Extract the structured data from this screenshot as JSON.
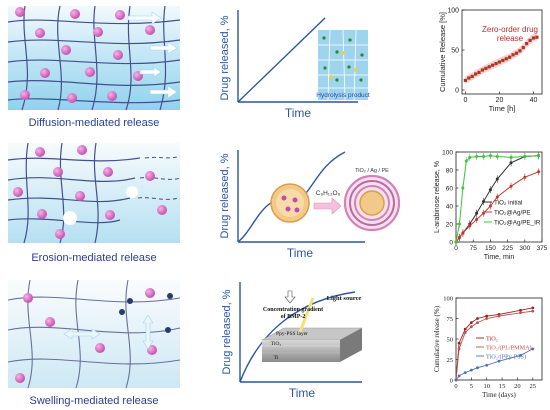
{
  "rows": [
    {
      "label": "Diffusion-mediated release",
      "curve": {
        "xlabel": "Time",
        "ylabel": "Drug released, %",
        "inset_label": "Hydrolysis product"
      },
      "chart": {
        "ylabel": "Cumulative Release [%]",
        "xlabel": "Time [h]",
        "annotation": "Zero-order drug release"
      }
    },
    {
      "label": "Erosion-mediated release",
      "curve": {
        "xlabel": "Time",
        "ylabel": "Drug released, %",
        "arrow_label": "C₆H₁₂O₆",
        "inset_label": "TiO₂ / Ag / PE"
      },
      "chart": {
        "ylabel": "L-arabinose release, %",
        "xlabel": "Time, min"
      }
    },
    {
      "label": "Swelling-mediated release",
      "curve": {
        "xlabel": "Time",
        "ylabel": "Drug released, %",
        "inset_labels": [
          "Concentration gradient",
          "of BMP-2",
          "Light source",
          "Ppy-PSS layer",
          "TiO₂",
          "Ti"
        ]
      },
      "chart": {
        "ylabel": "Cumulative release (%)",
        "xlabel": "Time (days)"
      }
    }
  ],
  "chart_data": [
    {
      "type": "scatter",
      "title": "",
      "xlabel": "Time [h]",
      "ylabel": "Cumulative Release [%]",
      "xlim": [
        -2,
        45
      ],
      "ylim": [
        -5,
        100
      ],
      "xticks": [
        0,
        20,
        40
      ],
      "yticks": [
        0,
        50,
        100
      ],
      "series": [
        {
          "x": [
            0,
            2,
            4,
            6,
            8,
            10,
            12,
            14,
            16,
            18,
            20,
            22,
            24,
            26,
            28,
            30,
            32,
            34,
            36,
            38,
            40,
            42
          ],
          "y": [
            12,
            15,
            17,
            20,
            22,
            25,
            27,
            29,
            31,
            33,
            35,
            37,
            39,
            41,
            44,
            46,
            49,
            53,
            58,
            62,
            65,
            66
          ]
        }
      ],
      "annotations": [
        "Zero-order drug release"
      ]
    },
    {
      "type": "line",
      "title": "",
      "xlabel": "Time, min",
      "ylabel": "L-arabinose release, %",
      "xlim": [
        0,
        375
      ],
      "ylim": [
        0,
        100
      ],
      "xticks": [
        0,
        75,
        150,
        225,
        300,
        375
      ],
      "yticks": [
        0,
        20,
        40,
        60,
        80,
        100
      ],
      "legend": "center-right",
      "series": [
        {
          "name": "TiO₂ initial",
          "x": [
            0,
            15,
            30,
            60,
            90,
            120,
            150,
            180,
            240,
            300,
            360
          ],
          "y": [
            0,
            5,
            10,
            20,
            32,
            45,
            58,
            70,
            88,
            95,
            96
          ]
        },
        {
          "name": "TiO₂@Ag/PE",
          "x": [
            0,
            15,
            30,
            60,
            90,
            120,
            150,
            180,
            240,
            300,
            360
          ],
          "y": [
            0,
            5,
            10,
            18,
            25,
            32,
            40,
            50,
            62,
            72,
            78
          ]
        },
        {
          "name": "TiO₂@Ag/PE_IR",
          "x": [
            0,
            15,
            30,
            45,
            60,
            90,
            120,
            150,
            180,
            240,
            300,
            360
          ],
          "y": [
            0,
            20,
            60,
            90,
            94,
            95,
            95,
            96,
            95,
            94,
            95,
            96
          ]
        }
      ]
    },
    {
      "type": "line",
      "title": "",
      "xlabel": "Time (days)",
      "ylabel": "Cumulative release (%)",
      "xlim": [
        0,
        28
      ],
      "ylim": [
        0,
        100
      ],
      "xticks": [
        0,
        5,
        10,
        15,
        20,
        25
      ],
      "yticks": [
        0,
        25,
        50,
        75,
        100
      ],
      "legend": "center",
      "series": [
        {
          "name": "TiO₂",
          "x": [
            0,
            1,
            3,
            5,
            7,
            10,
            14,
            21,
            25
          ],
          "y": [
            0,
            45,
            62,
            70,
            75,
            78,
            80,
            85,
            88
          ]
        },
        {
          "name": "TiO₂/(PL/PMMA)₅",
          "x": [
            0,
            1,
            3,
            5,
            7,
            10,
            14,
            21,
            25
          ],
          "y": [
            0,
            38,
            58,
            65,
            70,
            75,
            78,
            82,
            84
          ]
        },
        {
          "name": "TiO₂/(PPy-PSS)",
          "x": [
            0,
            1,
            3,
            5,
            7,
            10,
            14,
            21,
            25
          ],
          "y": [
            0,
            5,
            9,
            12,
            15,
            18,
            23,
            30,
            38
          ]
        }
      ]
    }
  ],
  "colors": {
    "mesh": "#44508a",
    "gel_light": "#e4f3fb",
    "gel_dark": "#7bc8e8",
    "drug": "#d95fc2",
    "curve": "#2a55a4",
    "chart1_marker": "#a83a1e",
    "chart1_fill": "#f7b3c0",
    "chart1_note": "#c02a2a",
    "s_initial": "#333333",
    "s_agpe": "#c0392b",
    "s_agpe_ir": "#3bc43b",
    "c3_tio2": "#a02020",
    "c3_plpmma": "#c0504d",
    "c3_ppy": "#4f6fb5"
  }
}
